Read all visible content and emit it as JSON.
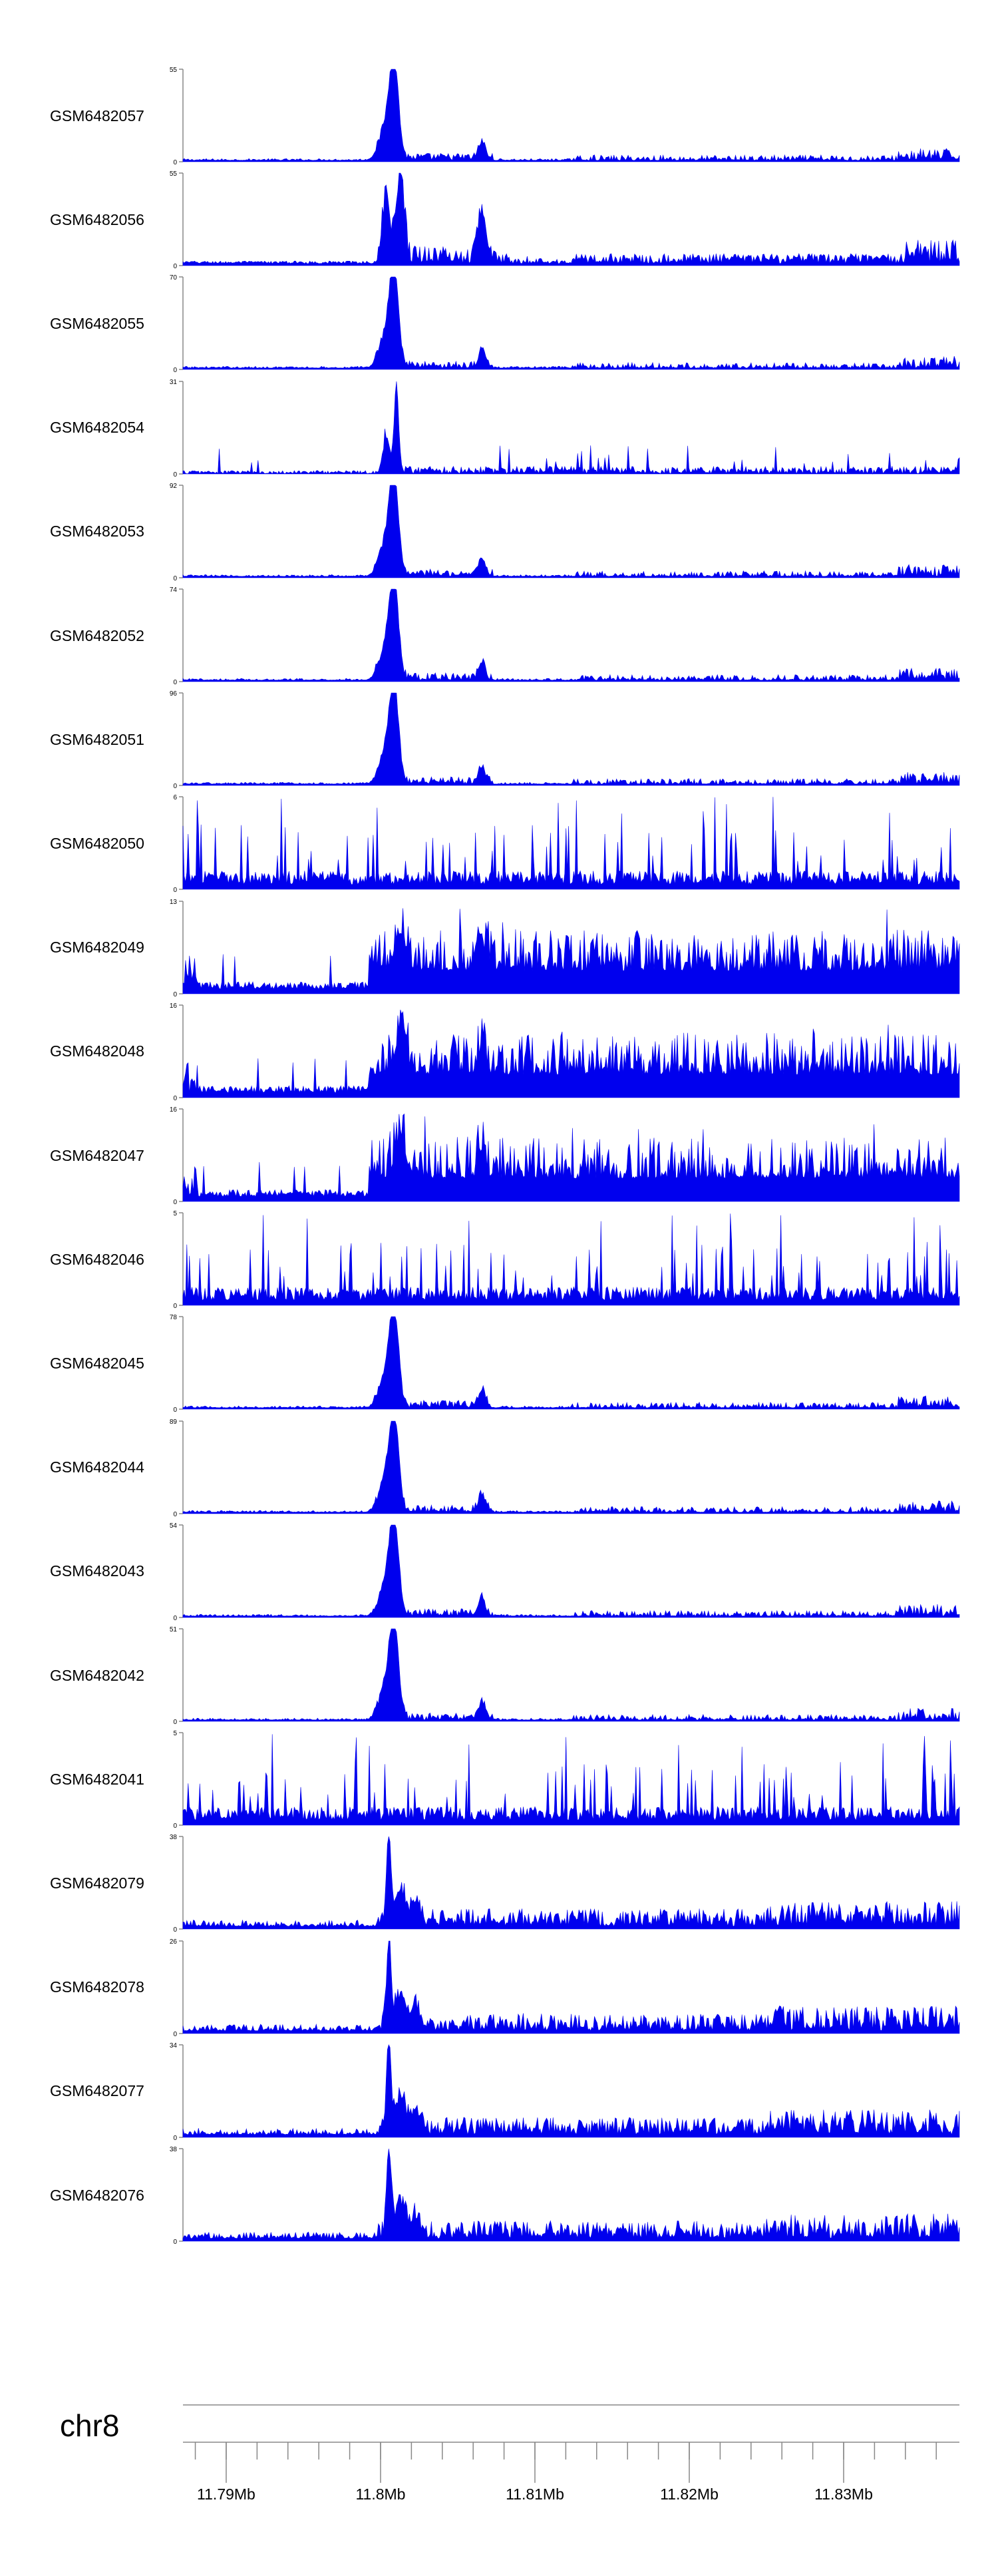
{
  "chart_data": {
    "type": "area",
    "chromosome": "chr8",
    "x_range": [
      11.7872,
      11.8375
    ],
    "x_unit": "Mb",
    "x_tick_labels": [
      "11.79Mb",
      "11.8Mb",
      "11.81Mb",
      "11.82Mb",
      "11.83Mb"
    ],
    "x_ticks": [
      11.79,
      11.8,
      11.81,
      11.82,
      11.83
    ],
    "minor_tick_step": 0.002,
    "color": "#0000ee",
    "axis_color": "#888888",
    "tracks": [
      {
        "name": "GSM6482057",
        "ymax": 55,
        "ymin": 0,
        "profile": "A"
      },
      {
        "name": "GSM6482056",
        "ymax": 55,
        "ymin": 0,
        "profile": "B"
      },
      {
        "name": "GSM6482055",
        "ymax": 70,
        "ymin": 0,
        "profile": "A"
      },
      {
        "name": "GSM6482054",
        "ymax": 31,
        "ymin": 0,
        "profile": "C"
      },
      {
        "name": "GSM6482053",
        "ymax": 92,
        "ymin": 0,
        "profile": "A"
      },
      {
        "name": "GSM6482052",
        "ymax": 74,
        "ymin": 0,
        "profile": "A"
      },
      {
        "name": "GSM6482051",
        "ymax": 96,
        "ymin": 0,
        "profile": "A"
      },
      {
        "name": "GSM6482050",
        "ymax": 6,
        "ymin": 0,
        "profile": "N"
      },
      {
        "name": "GSM6482049",
        "ymax": 13,
        "ymin": 0,
        "profile": "D"
      },
      {
        "name": "GSM6482048",
        "ymax": 16,
        "ymin": 0,
        "profile": "D"
      },
      {
        "name": "GSM6482047",
        "ymax": 16,
        "ymin": 0,
        "profile": "D"
      },
      {
        "name": "GSM6482046",
        "ymax": 5,
        "ymin": 0,
        "profile": "N"
      },
      {
        "name": "GSM6482045",
        "ymax": 78,
        "ymin": 0,
        "profile": "A"
      },
      {
        "name": "GSM6482044",
        "ymax": 89,
        "ymin": 0,
        "profile": "A"
      },
      {
        "name": "GSM6482043",
        "ymax": 54,
        "ymin": 0,
        "profile": "A"
      },
      {
        "name": "GSM6482042",
        "ymax": 51,
        "ymin": 0,
        "profile": "A"
      },
      {
        "name": "GSM6482041",
        "ymax": 5,
        "ymin": 0,
        "profile": "N"
      },
      {
        "name": "GSM6482079",
        "ymax": 38,
        "ymin": 0,
        "profile": "E"
      },
      {
        "name": "GSM6482078",
        "ymax": 26,
        "ymin": 0,
        "profile": "E"
      },
      {
        "name": "GSM6482077",
        "ymax": 34,
        "ymin": 0,
        "profile": "E"
      },
      {
        "name": "GSM6482076",
        "ymax": 38,
        "ymin": 0,
        "profile": "E"
      }
    ]
  }
}
